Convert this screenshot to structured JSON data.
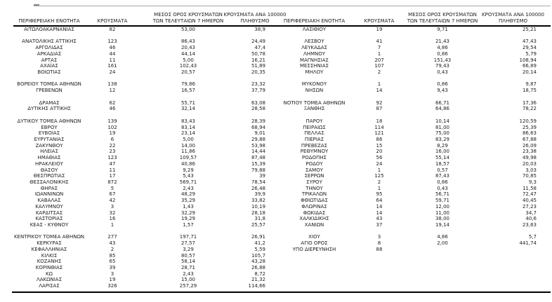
{
  "page": {
    "background": "#ffffff",
    "text_color": "#1c1c1c",
    "rule_dark": "#000000",
    "rule_light": "#a6a6a6"
  },
  "table": {
    "column_headers": {
      "region": "ΠΕΡΙΦΕΡΕΙΑΚΗ ΕΝΟΤΗΤΑ",
      "cases": "ΚΡΟΥΣΜΑΤΑ",
      "avg_7day_line1": "ΜΕΣΟΣ ΟΡΟΣ ΚΡΟΥΣΜΑΤΩΝ",
      "avg_7day_line2": "ΤΩΝ ΤΕΛΕΥΤΑΙΩΝ 7 ΗΜΕΡΩΝ",
      "per_100k_line1": "ΚΡΟΥΣΜΑΤΑ ΑΝΑ 100000",
      "per_100k_line2": "ΠΛΗΘΥΣΜΟ"
    },
    "left_groups": [
      [
        [
          "ΑΙΤΩΛΟΑΚΑΡΝΑΝΙΑΣ",
          "82",
          "53,00",
          "38,9"
        ]
      ],
      [
        [
          "ΑΝΑΤΟΛΙΚΗΣ ΑΤΤΙΚΗΣ",
          "123",
          "86,43",
          "24,49"
        ],
        [
          "ΑΡΓΟΛΙΔΑΣ",
          "46",
          "20,43",
          "47,4"
        ],
        [
          "ΑΡΚΑΔΙΑΣ",
          "44",
          "44,14",
          "50,78"
        ],
        [
          "ΑΡΤΑΣ",
          "11",
          "5,00",
          "16,21"
        ],
        [
          "ΑΧΑΪΑΣ",
          "161",
          "102,43",
          "51,89"
        ],
        [
          "ΒΟΙΩΤΙΑΣ",
          "24",
          "20,57",
          "20,35"
        ]
      ],
      [
        [
          "ΒΟΡΕΙΟΥ ΤΟΜΕΑ ΑΘΗΝΩΝ",
          "138",
          "79,86",
          "23,32"
        ],
        [
          "ΓΡΕΒΕΝΩΝ",
          "12",
          "16,57",
          "37,79"
        ]
      ],
      [
        [
          "ΔΡΑΜΑΣ",
          "62",
          "55,71",
          "63,08"
        ],
        [
          "ΔΥΤΙΚΗΣ ΑΤΤΙΚΗΣ",
          "46",
          "32,14",
          "28,58"
        ]
      ],
      [
        [
          "ΔΥΤΙΚΟΥ ΤΟΜΕΑ ΑΘΗΝΩΝ",
          "139",
          "83,43",
          "28,39"
        ],
        [
          "ΕΒΡΟΥ",
          "102",
          "83,14",
          "68,94"
        ],
        [
          "ΕΥΒΟΙΑΣ",
          "19",
          "23,14",
          "9,01"
        ],
        [
          "ΕΥΡΥΤΑΝΙΑΣ",
          "6",
          "5,00",
          "29,88"
        ],
        [
          "ΖΑΚΥΝΘΟΥ",
          "22",
          "14,00",
          "53,98"
        ],
        [
          "ΗΛΕΙΑΣ",
          "23",
          "11,86",
          "14,44"
        ],
        [
          "ΗΜΑΘΙΑΣ",
          "123",
          "109,57",
          "87,48"
        ],
        [
          "ΗΡΑΚΛΕΙΟΥ",
          "47",
          "40,86",
          "15,39"
        ],
        [
          "ΘΑΣΟΥ",
          "11",
          "9,29",
          "79,88"
        ],
        [
          "ΘΕΣΠΡΩΤΙΑΣ",
          "17",
          "5,43",
          "39"
        ],
        [
          "ΘΕΣΣΑΛΟΝΙΚΗΣ",
          "872",
          "569,71",
          "78,54"
        ],
        [
          "ΘΗΡΑΣ",
          "5",
          "2,43",
          "26,48"
        ],
        [
          "ΙΩΑΝΝΙΝΩΝ",
          "67",
          "48,29",
          "39,9"
        ],
        [
          "ΚΑΒΑΛΑΣ",
          "42",
          "35,29",
          "33,82"
        ],
        [
          "ΚΑΛΥΜΝΟΥ",
          "3",
          "1,43",
          "10,19"
        ],
        [
          "ΚΑΡΔΙΤΣΑΣ",
          "32",
          "32,29",
          "28,18"
        ],
        [
          "ΚΑΣΤΟΡΙΑΣ",
          "16",
          "19,29",
          "31,8"
        ],
        [
          "ΚΕΑΣ - ΚΥΘΝΟΥ",
          "1",
          "1,57",
          "25,57"
        ]
      ],
      [
        [
          "ΚΕΝΤΡΙΚΟΥ ΤΟΜΕΑ ΑΘΗΝΩΝ",
          "277",
          "197,71",
          "26,91"
        ],
        [
          "ΚΕΡΚΥΡΑΣ",
          "43",
          "27,57",
          "41,2"
        ],
        [
          "ΚΕΦΑΛΛΗΝΙΑΣ",
          "2",
          "3,29",
          "5,59"
        ],
        [
          "ΚΙΛΚΙΣ",
          "85",
          "80,57",
          "105,7"
        ],
        [
          "ΚΟΖΑΝΗΣ",
          "65",
          "58,14",
          "43,28"
        ],
        [
          "ΚΟΡΙΝΘΙΑΣ",
          "39",
          "28,71",
          "26,88"
        ],
        [
          "ΚΩ",
          "3",
          "2,43",
          "8,72"
        ],
        [
          "ΛΑΚΩΝΙΑΣ",
          "19",
          "15,00",
          "21,32"
        ],
        [
          "ΛΑΡΙΣΑΣ",
          "326",
          "257,29",
          "114,66"
        ]
      ]
    ],
    "right_groups": [
      [
        [
          "ΛΑΣΙΘΙΟΥ",
          "19",
          "9,71",
          "25,21"
        ]
      ],
      [
        [
          "ΛΕΣΒΟΥ",
          "41",
          "21,43",
          "47,43"
        ],
        [
          "ΛΕΥΚΑΔΑΣ",
          "7",
          "4,86",
          "29,54"
        ],
        [
          "ΛΗΜΝΟΥ",
          "1",
          "0,86",
          "5,79"
        ],
        [
          "ΜΑΓΝΗΣΙΑΣ",
          "207",
          "151,43",
          "108,94"
        ],
        [
          "ΜΕΣΣΗΝΙΑΣ",
          "107",
          "79,43",
          "66,89"
        ],
        [
          "ΜΗΛΟΥ",
          "2",
          "0,43",
          "20,14"
        ]
      ],
      [
        [
          "ΜΥΚΟΝΟΥ",
          "1",
          "0,86",
          "9,87"
        ],
        [
          "ΝΗΣΩΝ",
          "14",
          "9,43",
          "18,75"
        ]
      ],
      [
        [
          "ΝΟΤΙΟΥ ΤΟΜΕΑ ΑΘΗΝΩΝ",
          "92",
          "66,71",
          "17,36"
        ],
        [
          "ΞΑΝΘΗΣ",
          "87",
          "64,86",
          "78,22"
        ]
      ],
      [
        [
          "ΠΑΡΟΥ",
          "18",
          "10,14",
          "120,59"
        ],
        [
          "ΠΕΙΡΑΙΩΣ",
          "114",
          "81,00",
          "25,39"
        ],
        [
          "ΠΕΛΛΑΣ",
          "121",
          "75,00",
          "86,63"
        ],
        [
          "ΠΙΕΡΙΑΣ",
          "86",
          "83,29",
          "67,88"
        ],
        [
          "ΠΡΕΒΕΖΑΣ",
          "15",
          "8,29",
          "26,09"
        ],
        [
          "ΡΕΘΥΜΝΟΥ",
          "20",
          "16,00",
          "23,38"
        ],
        [
          "ΡΟΔΟΠΗΣ",
          "56",
          "55,14",
          "49,98"
        ],
        [
          "ΡΟΔΟΥ",
          "24",
          "18,57",
          "20,03"
        ],
        [
          "ΣΑΜΟΥ",
          "1",
          "0,57",
          "3,03"
        ],
        [
          "ΣΕΡΡΩΝ",
          "125",
          "87,43",
          "70,85"
        ],
        [
          "ΣΥΡΟΥ",
          "2",
          "0,86",
          "9,3"
        ],
        [
          "ΤΗΝΟΥ",
          "1",
          "0,43",
          "11,58"
        ],
        [
          "ΤΡΙΚΑΛΩΝ",
          "95",
          "56,71",
          "72,47"
        ],
        [
          "ΦΘΙΩΤΙΔΑΣ",
          "64",
          "59,71",
          "40,45"
        ],
        [
          "ΦΛΩΡΙΝΑΣ",
          "14",
          "12,00",
          "27,23"
        ],
        [
          "ΦΩΚΙΔΑΣ",
          "14",
          "11,00",
          "34,7"
        ],
        [
          "ΧΑΛΚΙΔΙΚΗΣ",
          "43",
          "38,00",
          "40,6"
        ],
        [
          "ΧΑΝΙΩΝ",
          "37",
          "19,14",
          "23,63"
        ]
      ],
      [
        [
          "ΧΙΟΥ",
          "3",
          "4,86",
          "5,7"
        ],
        [
          "ΑΓΙΟ ΟΡΟΣ",
          "8",
          "2,00",
          "441,74"
        ],
        [
          "ΥΠΟ ΔΙΕΡΕΥΝΗΣΗ",
          "88",
          "",
          ""
        ]
      ]
    ]
  }
}
